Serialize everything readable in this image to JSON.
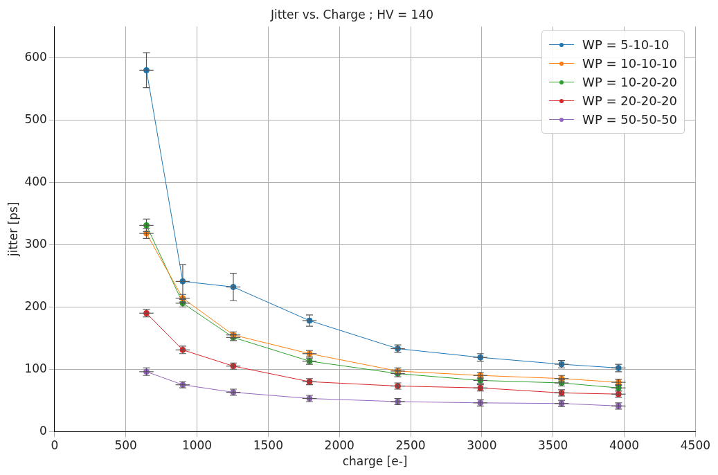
{
  "chart_data": {
    "type": "line",
    "title": "Jitter vs. Charge ; HV = 140",
    "xlabel": "charge [e-]",
    "ylabel": "jitter [ps]",
    "x": [
      645,
      900,
      1255,
      1790,
      2410,
      2990,
      3560,
      3960
    ],
    "series": [
      {
        "name": "WP = 5-10-10",
        "color": "#1f77b4",
        "values": [
          580,
          241,
          232,
          178,
          133,
          119,
          108,
          102
        ],
        "errors": [
          28,
          27,
          22,
          9,
          6,
          6,
          6,
          6
        ],
        "xerrors": [
          50,
          50,
          50,
          50,
          50,
          50,
          50,
          50
        ]
      },
      {
        "name": "WP = 10-10-10",
        "color": "#ff7f0e",
        "values": [
          318,
          214,
          155,
          125,
          97,
          90,
          85,
          79
        ],
        "errors": [
          8,
          6,
          5,
          5,
          5,
          5,
          5,
          5
        ],
        "xerrors": [
          50,
          50,
          50,
          50,
          50,
          50,
          50,
          50
        ]
      },
      {
        "name": "WP = 10-20-20",
        "color": "#2ca02c",
        "values": [
          331,
          206,
          151,
          113,
          93,
          82,
          78,
          70
        ],
        "errors": [
          10,
          6,
          5,
          5,
          5,
          5,
          5,
          5
        ],
        "xerrors": [
          50,
          50,
          50,
          50,
          50,
          50,
          50,
          50
        ]
      },
      {
        "name": "WP = 20-20-20",
        "color": "#d62728",
        "values": [
          190,
          131,
          105,
          80,
          73,
          70,
          62,
          60
        ],
        "errors": [
          6,
          6,
          5,
          5,
          5,
          5,
          5,
          5
        ],
        "xerrors": [
          50,
          50,
          50,
          50,
          50,
          50,
          50,
          50
        ]
      },
      {
        "name": "WP = 50-50-50",
        "color": "#9467bd",
        "values": [
          96,
          75,
          63,
          53,
          48,
          46,
          45,
          41
        ],
        "errors": [
          6,
          5,
          5,
          5,
          5,
          5,
          5,
          5
        ],
        "xerrors": [
          50,
          50,
          50,
          50,
          50,
          50,
          50,
          50
        ]
      }
    ],
    "xlim": [
      0,
      4500
    ],
    "xticks": [
      0,
      500,
      1000,
      1500,
      2000,
      2500,
      3000,
      3500,
      4000,
      4500
    ],
    "ylim": [
      0,
      650
    ],
    "yticks": [
      0,
      100,
      200,
      300,
      400,
      500,
      600
    ],
    "grid": true,
    "legend": "top right",
    "marker": "circle",
    "line_style": "solid"
  }
}
